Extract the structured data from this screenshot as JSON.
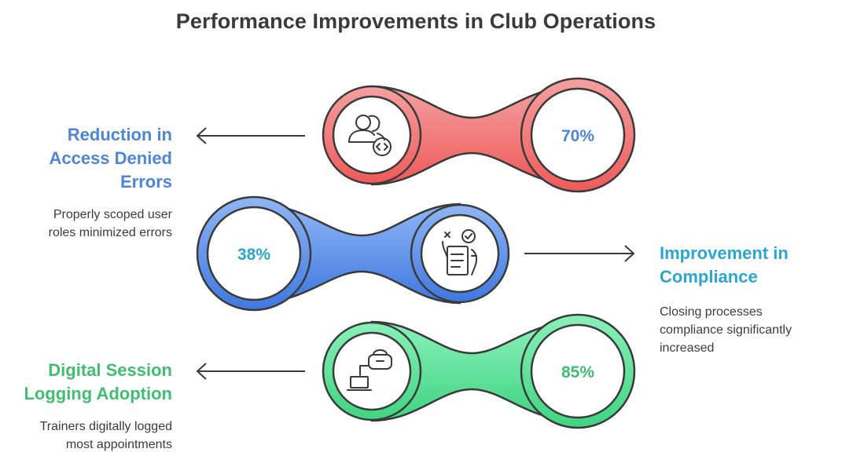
{
  "title": "Performance Improvements in Club Operations",
  "colors": {
    "red": "#f06868",
    "red_text": "#4d86d6",
    "blue": "#4c86e8",
    "blue_text": "#2aa6d0",
    "green": "#4fdd8e",
    "green_text": "#3fbf6f",
    "outline": "#3a3a3a"
  },
  "items": [
    {
      "heading": "Reduction in Access Denied Errors",
      "heading_lines": [
        "Reduction in",
        "Access Denied",
        "Errors"
      ],
      "description_lines": [
        "Properly scoped user",
        "roles minimized errors"
      ],
      "value": "70%",
      "icon": "users-code-icon"
    },
    {
      "heading": "Improvement in Compliance",
      "heading_lines": [
        "Improvement in",
        "Compliance"
      ],
      "description_lines": [
        "Closing processes",
        "compliance significantly",
        "increased"
      ],
      "value": "38%",
      "icon": "checklist-hand-icon"
    },
    {
      "heading": "Digital Session Logging Adoption",
      "heading_lines": [
        "Digital Session",
        "Logging Adoption"
      ],
      "description_lines": [
        "Trainers digitally logged",
        "most appointments"
      ],
      "value": "85%",
      "icon": "vr-laptop-icon"
    }
  ]
}
